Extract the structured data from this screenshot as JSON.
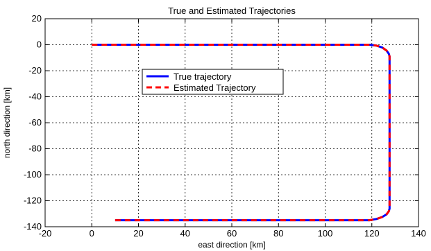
{
  "chart_data": {
    "type": "line",
    "title": "True and Estimated Trajectories",
    "xlabel": "east direction [km]",
    "ylabel": "north direction [km]",
    "xlim": [
      -20,
      140
    ],
    "ylim": [
      -140,
      20
    ],
    "xticks": [
      -20,
      0,
      20,
      40,
      60,
      80,
      100,
      120,
      140
    ],
    "yticks": [
      20,
      0,
      -20,
      -40,
      -60,
      -80,
      -100,
      -120,
      -140
    ],
    "grid": true,
    "legend_position": "upper-center",
    "series": [
      {
        "name": "True trajectory",
        "color": "#0000ff",
        "style": "solid",
        "x": [
          0,
          119,
          122,
          124.5,
          126.3,
          127.3,
          127.6,
          127.6,
          127.3,
          126.3,
          124.5,
          122,
          119,
          10
        ],
        "y": [
          0,
          0,
          -0.7,
          -2.2,
          -4.5,
          -7,
          -9,
          -126,
          -128,
          -130.5,
          -132.5,
          -134,
          -135,
          -135
        ]
      },
      {
        "name": "Estimated Trajectory",
        "color": "#ff0000",
        "style": "dashed",
        "x": [
          0,
          119,
          122,
          124.5,
          126.3,
          127.3,
          127.6,
          127.6,
          127.3,
          126.3,
          124.5,
          122,
          119,
          10
        ],
        "y": [
          0,
          0,
          -0.7,
          -2.2,
          -4.5,
          -7,
          -9,
          -126,
          -128,
          -130.5,
          -132.5,
          -134,
          -135,
          -135
        ]
      }
    ]
  }
}
